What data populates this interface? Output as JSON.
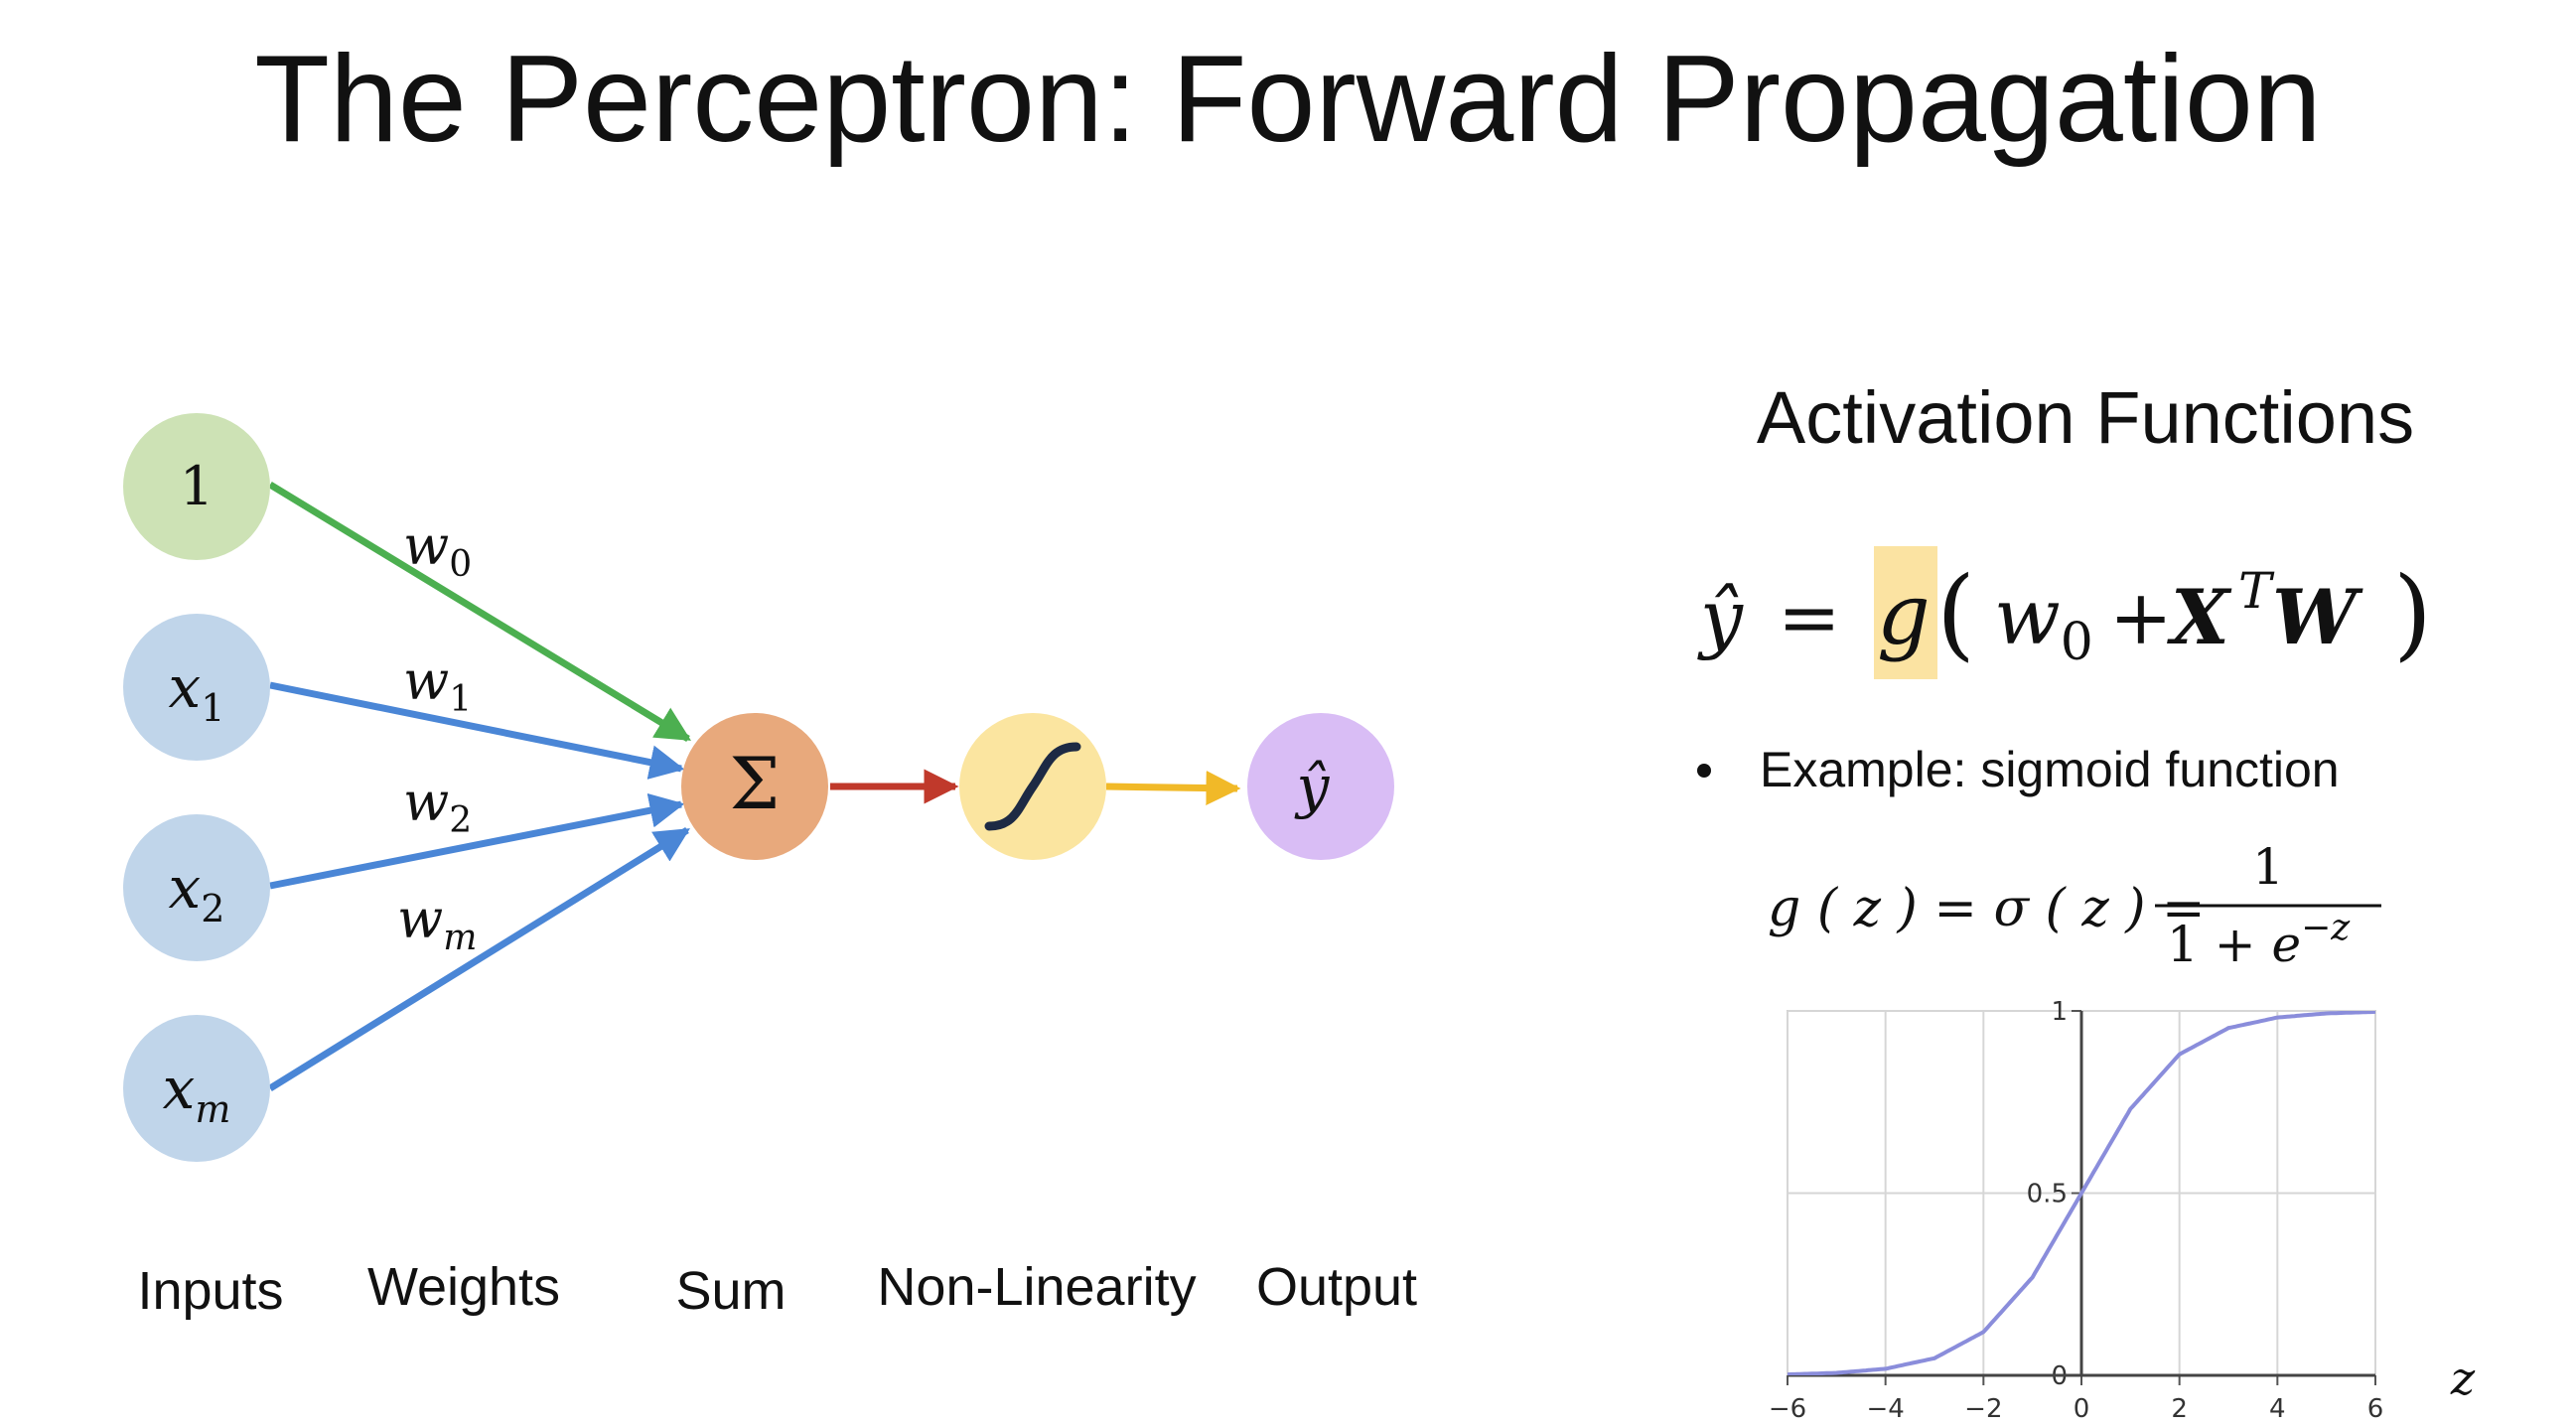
{
  "title": "The Perceptron: Forward Propagation",
  "diagram": {
    "bias_node_label": "1",
    "input_labels": [
      {
        "base": "x",
        "sub": "1"
      },
      {
        "base": "x",
        "sub": "2"
      },
      {
        "base": "x",
        "sub": "m"
      }
    ],
    "weight_labels": [
      {
        "base": "w",
        "sub": "0"
      },
      {
        "base": "w",
        "sub": "1"
      },
      {
        "base": "w",
        "sub": "2"
      },
      {
        "base": "w",
        "sub": "m"
      }
    ],
    "sum_symbol": "Σ",
    "output_symbol": "ŷ",
    "stage_labels": {
      "inputs": "Inputs",
      "weights": "Weights",
      "sum": "Sum",
      "nonlinearity": "Non-Linearity",
      "output": "Output"
    },
    "colors": {
      "bias_node": "#cde2b5",
      "input_node": "#c0d5ea",
      "sum_node": "#e8a97c",
      "nonlin_node": "#fbe5a0",
      "output_node": "#d9bdf5",
      "bias_edge": "#4caf50",
      "input_edge": "#4a86d6",
      "sum_to_nonlin_edge": "#c0392b",
      "nonlin_to_output_edge": "#f1b928"
    }
  },
  "activation": {
    "heading": "Activation Functions",
    "bullet": "Example: sigmoid function",
    "highlight_color": "#fbe3a2"
  },
  "chart_data": {
    "type": "line",
    "function": "sigmoid",
    "series": [
      {
        "x": [
          -6,
          -5,
          -4,
          -3,
          -2,
          -1,
          0,
          1,
          2,
          3,
          4,
          5,
          6
        ],
        "values": [
          0.0025,
          0.0067,
          0.018,
          0.047,
          0.119,
          0.269,
          0.5,
          0.731,
          0.881,
          0.953,
          0.982,
          0.9933,
          0.9975
        ]
      }
    ],
    "xlim": [
      -6,
      6
    ],
    "ylim": [
      0,
      1
    ],
    "x_ticks": [
      "−6",
      "−4",
      "−2",
      "0",
      "2",
      "4",
      "6"
    ],
    "y_ticks": [
      "0",
      "0.5",
      "1"
    ],
    "xlabel": "z",
    "grid": true,
    "line_color": "#8a8ddb"
  }
}
